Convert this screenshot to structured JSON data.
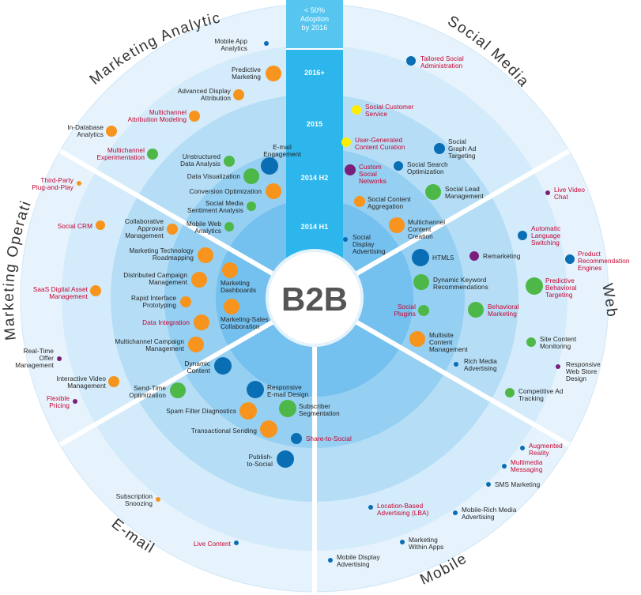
{
  "center": {
    "label": "B2B"
  },
  "timeline": {
    "header": "< 50%\nAdoption\nby 2016",
    "rings": [
      "2016+",
      "2015",
      "2014 H2",
      "2014 H1"
    ]
  },
  "segments": [
    "Marketing Analytics",
    "Social Media",
    "Web",
    "Mobile",
    "E-mail",
    "Marketing Operations"
  ],
  "colors": {
    "orange": "#f7941d",
    "green": "#4db848",
    "blue": "#0a6eb4",
    "purple": "#7a1f7a",
    "yellow": "#ffee00",
    "red_text": "#c7002f",
    "ring_outer": "#e6f3fc",
    "ring_2": "#c2e4f8",
    "ring_3": "#9fd4f3",
    "ring_4": "#7cc4ee",
    "ring_5": "#5ab4ea",
    "timeline_bar": "#2db6ec"
  },
  "items": [
    {
      "name": "mobile-app-analytics",
      "text": "Mobile App\nAnalytics",
      "red": false,
      "dot": "blue",
      "size": 3
    },
    {
      "name": "predictive-marketing",
      "text": "Predictive\nMarketing",
      "red": false,
      "dot": "orange",
      "size": 10
    },
    {
      "name": "advanced-display-attribution",
      "text": "Advanced Display\nAttribution",
      "red": false,
      "dot": "orange",
      "size": 7
    },
    {
      "name": "multichannel-attribution-modeling",
      "text": "Multichannel\nAttribution Modeling",
      "red": true,
      "dot": "orange",
      "size": 7
    },
    {
      "name": "in-database-analytics",
      "text": "In-Database\nAnalytics",
      "red": false,
      "dot": "orange",
      "size": 7
    },
    {
      "name": "multichannel-experimentation",
      "text": "Multichannel\nExperimentation",
      "red": true,
      "dot": "green",
      "size": 7
    },
    {
      "name": "third-party-plug-and-play",
      "text": "Third-Party\nPlug-and-Play",
      "red": true,
      "dot": "orange",
      "size": 3
    },
    {
      "name": "social-crm",
      "text": "Social CRM",
      "red": true,
      "dot": "orange",
      "size": 6
    },
    {
      "name": "saas-digital-asset-management",
      "text": "SaaS Digital Asset\nManagement",
      "red": true,
      "dot": "orange",
      "size": 7
    },
    {
      "name": "real-time-offer-management",
      "text": "Real-Time\nOffer\nManagement",
      "red": false,
      "dot": "purple",
      "size": 3
    },
    {
      "name": "interactive-video-management",
      "text": "Interactive Video\nManagement",
      "red": false,
      "dot": "orange",
      "size": 7
    },
    {
      "name": "flexible-pricing",
      "text": "Flexible\nPricing",
      "red": true,
      "dot": "purple",
      "size": 3
    },
    {
      "name": "subscription-snoozing",
      "text": "Subscription\nSnoozing",
      "red": false,
      "dot": "orange",
      "size": 3
    },
    {
      "name": "live-content",
      "text": "Live Content",
      "red": true,
      "dot": "blue",
      "size": 3
    },
    {
      "name": "mobile-display-advertising",
      "text": "Mobile Display\nAdvertising",
      "red": false,
      "dot": "blue",
      "size": 3
    },
    {
      "name": "marketing-within-apps",
      "text": "Marketing\nWithin Apps",
      "red": false,
      "dot": "blue",
      "size": 3
    },
    {
      "name": "location-based-advertising",
      "text": "Location-Based\nAdvertising (LBA)",
      "red": true,
      "dot": "blue",
      "size": 3
    },
    {
      "name": "mobile-rich-media-advertising",
      "text": "Mobile-Rich Media\nAdvertising",
      "red": false,
      "dot": "blue",
      "size": 3
    },
    {
      "name": "sms-marketing",
      "text": "SMS Marketing",
      "red": false,
      "dot": "blue",
      "size": 3
    },
    {
      "name": "multimedia-messaging",
      "text": "Multimedia\nMessaging",
      "red": true,
      "dot": "blue",
      "size": 3
    },
    {
      "name": "augmented-reality",
      "text": "Augmented\nReality",
      "red": true,
      "dot": "blue",
      "size": 3
    },
    {
      "name": "tailored-social-administration",
      "text": "Tailored Social\nAdministration",
      "red": true,
      "dot": "blue",
      "size": 6
    },
    {
      "name": "social-customer-service",
      "text": "Social Customer\nService",
      "red": true,
      "dot": "yellow",
      "size": 6
    },
    {
      "name": "user-generated-content-curation",
      "text": "User-Generated\nContent Curation",
      "red": true,
      "dot": "yellow",
      "size": 6
    },
    {
      "name": "social-graph-ad-targeting",
      "text": "Social\nGraph Ad\nTargeting",
      "red": false,
      "dot": "blue",
      "size": 7
    },
    {
      "name": "custom-social-networks",
      "text": "Custom\nSocial\nNetworks",
      "red": true,
      "dot": "purple",
      "size": 7
    },
    {
      "name": "social-search-optimization",
      "text": "Social Search\nOptimization",
      "red": false,
      "dot": "blue",
      "size": 6
    },
    {
      "name": "social-lead-management",
      "text": "Social Lead\nManagement",
      "red": false,
      "dot": "green",
      "size": 10
    },
    {
      "name": "social-content-aggregation",
      "text": "Social Content\nAggregation",
      "red": false,
      "dot": "orange",
      "size": 7
    },
    {
      "name": "multichannel-content-creation",
      "text": "Multichannel\nContent\nCreation",
      "red": false,
      "dot": "orange",
      "size": 10
    },
    {
      "name": "social-display-advertising",
      "text": "Social\nDisplay\nAdvertising",
      "red": false,
      "dot": "blue",
      "size": 3
    },
    {
      "name": "live-video-chat",
      "text": "Live Video\nChat",
      "red": true,
      "dot": "purple",
      "size": 3
    },
    {
      "name": "automatic-language-switching",
      "text": "Automatic\nLanguage\nSwitching",
      "red": true,
      "dot": "blue",
      "size": 6
    },
    {
      "name": "product-recommendation-engines",
      "text": "Product\nRecommendation\nEngines",
      "red": true,
      "dot": "blue",
      "size": 6
    },
    {
      "name": "html5",
      "text": "HTML5",
      "red": false,
      "dot": "blue",
      "size": 11
    },
    {
      "name": "remarketing",
      "text": "Remarketing",
      "red": false,
      "dot": "purple",
      "size": 6
    },
    {
      "name": "predictive-behavioral-targeting",
      "text": "Predictive\nBehavioral\nTargeting",
      "red": true,
      "dot": "green",
      "size": 11
    },
    {
      "name": "dynamic-keyword-recommendations",
      "text": "Dynamic Keyword\nRecommendations",
      "red": false,
      "dot": "green",
      "size": 10
    },
    {
      "name": "behavioral-marketing",
      "text": "Behavioral\nMarketing",
      "red": true,
      "dot": "green",
      "size": 10
    },
    {
      "name": "social-plugins",
      "text": "Social\nPlugins",
      "red": true,
      "dot": "green",
      "size": 7
    },
    {
      "name": "site-content-monitoring",
      "text": "Site Content\nMonitoring",
      "red": false,
      "dot": "green",
      "size": 6
    },
    {
      "name": "multisite-content-management",
      "text": "Multisite\nContent\nManagement",
      "red": false,
      "dot": "orange",
      "size": 10
    },
    {
      "name": "responsive-web-store-design",
      "text": "Responsive\nWeb Store\nDesign",
      "red": false,
      "dot": "purple",
      "size": 3
    },
    {
      "name": "rich-media-advertising",
      "text": "Rich Media\nAdvertising",
      "red": false,
      "dot": "blue",
      "size": 3
    },
    {
      "name": "competitive-ad-tracking",
      "text": "Competitive Ad\nTracking",
      "red": false,
      "dot": "green",
      "size": 6
    },
    {
      "name": "e-mail-engagement",
      "text": "E-mail\nEngagement",
      "red": false,
      "dot": "blue",
      "size": 11
    },
    {
      "name": "unstructured-data-analysis",
      "text": "Unstructured\nData Analysis",
      "red": false,
      "dot": "green",
      "size": 7
    },
    {
      "name": "data-visualization",
      "text": "Data Visualization",
      "red": false,
      "dot": "green",
      "size": 10
    },
    {
      "name": "conversion-optimization",
      "text": "Conversion Optimization",
      "red": false,
      "dot": "orange",
      "size": 10
    },
    {
      "name": "social-media-sentiment-analysis",
      "text": "Social Media\nSentiment Analysis",
      "red": false,
      "dot": "green",
      "size": 6
    },
    {
      "name": "mobile-web-analytics",
      "text": "Mobile Web\nAnalytics",
      "red": false,
      "dot": "green",
      "size": 6
    },
    {
      "name": "collaborative-approval-management",
      "text": "Collaborative\nApproval\nManagement",
      "red": false,
      "dot": "orange",
      "size": 7
    },
    {
      "name": "marketing-technology-roadmapping",
      "text": "Marketing Technology\nRoadmapping",
      "red": false,
      "dot": "orange",
      "size": 10
    },
    {
      "name": "distributed-campaign-management",
      "text": "Distributed Campaign\nManagement",
      "red": false,
      "dot": "orange",
      "size": 10
    },
    {
      "name": "rapid-interface-prototyping",
      "text": "Rapid Interface\nPrototyping",
      "red": false,
      "dot": "orange",
      "size": 7
    },
    {
      "name": "data-integration",
      "text": "Data Integration",
      "red": true,
      "dot": "orange",
      "size": 10
    },
    {
      "name": "multichannel-campaign-management",
      "text": "Multichannel Campaign\nManagement",
      "red": false,
      "dot": "orange",
      "size": 10
    },
    {
      "name": "marketing-dashboards",
      "text": "Marketing\nDashboards",
      "red": false,
      "dot": "orange",
      "size": 10
    },
    {
      "name": "marketing-sales-collaboration",
      "text": "Marketing-Sales\nCollaboration",
      "red": false,
      "dot": "orange",
      "size": 10
    },
    {
      "name": "dynamic-content",
      "text": "Dynamic\nContent",
      "red": false,
      "dot": "blue",
      "size": 11
    },
    {
      "name": "send-time-optimization",
      "text": "Send-Time\nOptimization",
      "red": false,
      "dot": "green",
      "size": 10
    },
    {
      "name": "responsive-e-mail-design",
      "text": "Responsive\nE-mail Design",
      "red": false,
      "dot": "blue",
      "size": 11
    },
    {
      "name": "spam-filter-diagnostics",
      "text": "Spam Filter Diagnostics",
      "red": false,
      "dot": "orange",
      "size": 11
    },
    {
      "name": "subscriber-segmentation",
      "text": "Subscriber\nSegmentation",
      "red": false,
      "dot": "green",
      "size": 11
    },
    {
      "name": "transactional-sending",
      "text": "Transactional Sending",
      "red": false,
      "dot": "orange",
      "size": 11
    },
    {
      "name": "share-to-social",
      "text": "Share-to-Social",
      "red": true,
      "dot": "blue",
      "size": 7
    },
    {
      "name": "publish-to-social",
      "text": "Publish-\nto-Social",
      "red": false,
      "dot": "blue",
      "size": 11
    }
  ]
}
